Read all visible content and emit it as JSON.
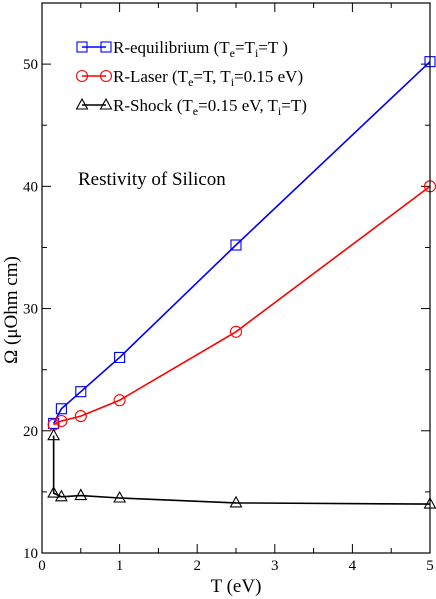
{
  "chart_data": {
    "type": "line",
    "title": "",
    "annotation": "Restivity of  Silicon",
    "xlabel": "T (eV)",
    "ylabel": "Ω (μOhm cm)",
    "xlim": [
      0,
      5
    ],
    "ylim": [
      10,
      55
    ],
    "x_ticks": [
      0,
      1,
      2,
      3,
      4,
      5
    ],
    "y_ticks": [
      10,
      20,
      30,
      40,
      50
    ],
    "x_tick_labels": [
      "0",
      "1",
      "2",
      "3",
      "4",
      "5"
    ],
    "y_tick_labels": [
      "10",
      "20",
      "30",
      "40",
      "50"
    ],
    "grid": false,
    "legend_position": "top-left",
    "series": [
      {
        "name": "R-equilibrium   (Te=Ti=T )",
        "legend": {
          "main": "R-equilibrium",
          "parts": [
            [
              "(T",
              "n"
            ],
            [
              "e",
              "sub"
            ],
            [
              "=T",
              "n"
            ],
            [
              "i",
              "sub"
            ],
            [
              "=T )",
              "n"
            ]
          ]
        },
        "color": "#0000ff",
        "marker": "square",
        "x": [
          0.15,
          0.25,
          0.5,
          1.0,
          2.5,
          5.0
        ],
        "y": [
          20.6,
          21.8,
          23.2,
          26.0,
          35.2,
          50.2
        ]
      },
      {
        "name": "R-Laser  (Te=T, Ti=0.15 eV)",
        "legend": {
          "main": "R-Laser",
          "parts": [
            [
              "(T",
              "n"
            ],
            [
              "e",
              "sub"
            ],
            [
              "=T, T",
              "n"
            ],
            [
              "i",
              "sub"
            ],
            [
              "=0.15 eV)",
              "n"
            ]
          ]
        },
        "color": "#ff0000",
        "marker": "circle",
        "x": [
          0.15,
          0.25,
          0.5,
          1.0,
          2.5,
          5.0
        ],
        "y": [
          20.5,
          20.8,
          21.2,
          22.5,
          28.1,
          40.0
        ]
      },
      {
        "name": "R-Shock (Te=0.15 eV, Ti=T)",
        "legend": {
          "main": "R-Shock",
          "parts": [
            [
              "(T",
              "n"
            ],
            [
              "e",
              "sub"
            ],
            [
              "=0.15 eV, T",
              "n"
            ],
            [
              "i",
              "sub"
            ],
            [
              "=T)",
              "n"
            ]
          ]
        },
        "color": "#000000",
        "marker": "triangle",
        "x": [
          0.15,
          0.15,
          0.25,
          0.5,
          1.0,
          2.5,
          5.0
        ],
        "y": [
          19.6,
          14.9,
          14.6,
          14.7,
          14.5,
          14.1,
          14.0
        ]
      }
    ]
  }
}
